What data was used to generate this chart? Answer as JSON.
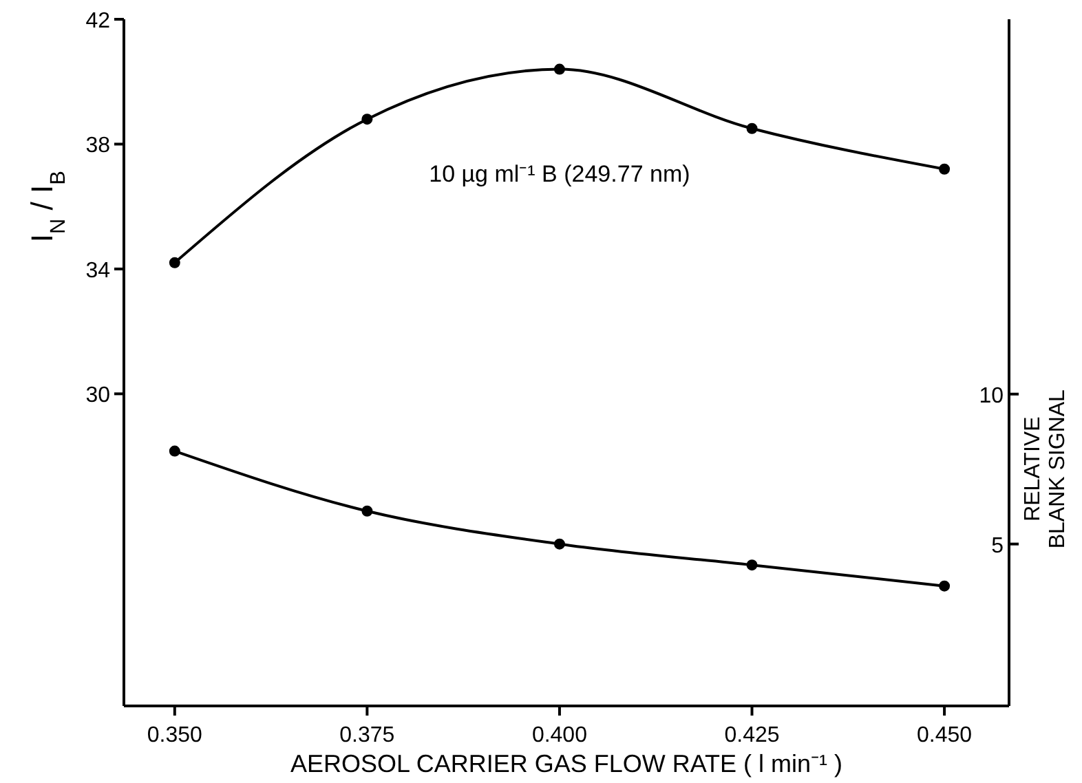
{
  "chart_data": {
    "type": "line",
    "xlabel": "AEROSOL CARRIER GAS FLOW RATE ( l min⁻¹ )",
    "ylabel": "I$_{N}$ / I$_{B}$",
    "y2label": "RELATIVE BLANK SIGNAL",
    "x": [
      0.35,
      0.375,
      0.4,
      0.425,
      0.45
    ],
    "series": [
      {
        "color": "#000000",
        "values": [
          34.2,
          38.8,
          40.4,
          38.5,
          37.2
        ]
      },
      {
        "color": "#000000",
        "axis": "y2",
        "values": [
          8.1,
          6.1,
          5.0,
          4.3,
          3.6
        ]
      }
    ],
    "xlim": [
      0.3434,
      0.4584
    ],
    "xticks": [
      {
        "value": 0.35,
        "label": "0.350"
      },
      0.375,
      {
        "value": 0.4,
        "label": "0.400"
      },
      0.425,
      {
        "value": 0.45,
        "label": "0.450"
      }
    ],
    "ylim": [
      20,
      42
    ],
    "yticks": [
      30,
      34,
      38,
      42
    ],
    "y2lim": [
      -0.4,
      22.5
    ],
    "y2ticks": [
      5,
      10
    ],
    "marker": "circle",
    "line_style": "solid",
    "grid": false,
    "annotations": [
      "10 µg ml⁻¹ B  (249.77 nm)"
    ]
  }
}
